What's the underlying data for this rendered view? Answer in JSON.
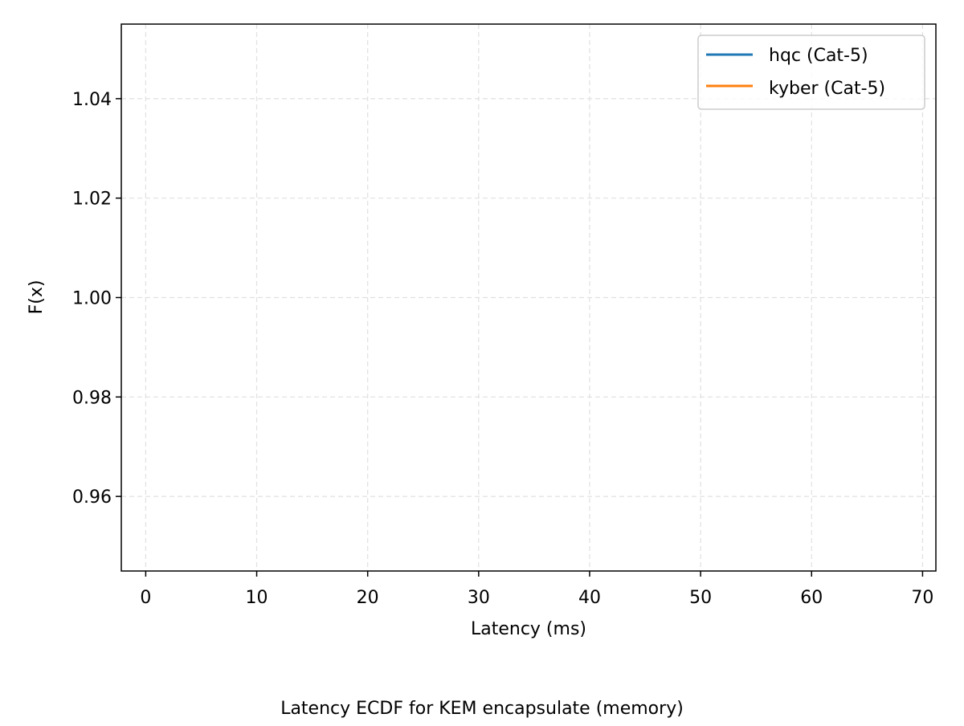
{
  "chart_data": {
    "type": "line",
    "title": "Latency ECDF for KEM encapsulate (memory)",
    "xlabel": "Latency (ms)",
    "ylabel": "F(x)",
    "xlim": [
      -2.2,
      71.2
    ],
    "ylim": [
      0.945,
      1.055
    ],
    "xticks": [
      0,
      10,
      20,
      30,
      40,
      50,
      60,
      70
    ],
    "yticks": [
      0.96,
      0.98,
      1.0,
      1.02,
      1.04
    ],
    "xtick_labels": [
      "0",
      "10",
      "20",
      "30",
      "40",
      "50",
      "60",
      "70"
    ],
    "ytick_labels": [
      "0.96",
      "0.98",
      "1.00",
      "1.02",
      "1.04"
    ],
    "grid": true,
    "legend_position": "top-right",
    "series": [
      {
        "name": "hqc (Cat-5)",
        "color": "#1f77b4",
        "x": [],
        "y": []
      },
      {
        "name": "kyber (Cat-5)",
        "color": "#ff7f0e",
        "x": [],
        "y": []
      }
    ]
  }
}
